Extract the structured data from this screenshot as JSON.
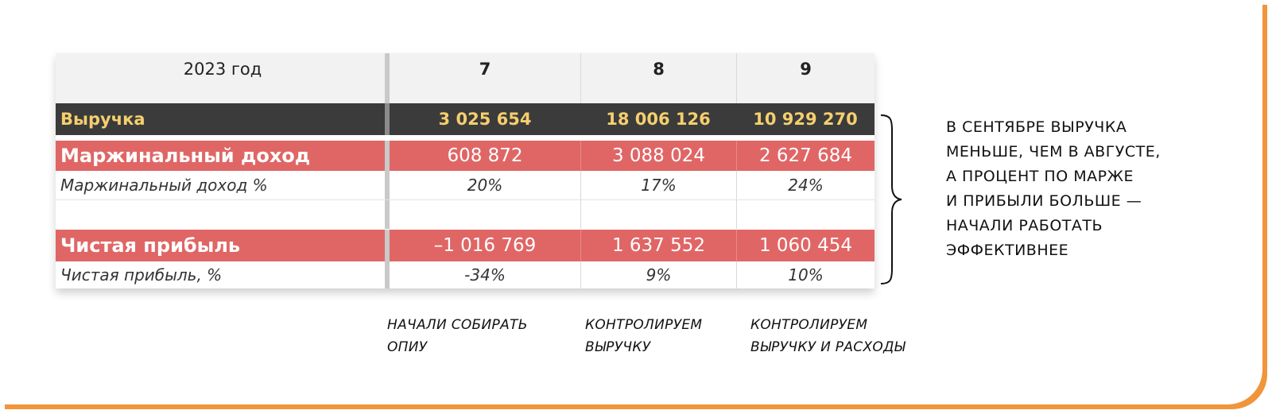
{
  "table": {
    "header": {
      "year_label": "2023 год",
      "months": [
        "7",
        "8",
        "9"
      ]
    },
    "rows": [
      {
        "label": "Выручка",
        "values": [
          "3 025 654",
          "18 006 126",
          "10 929 270"
        ]
      },
      {
        "label": "Маржинальный доход",
        "values": [
          "608 872",
          "3 088 024",
          "2 627 684"
        ]
      },
      {
        "label": "Маржинальный доход %",
        "values": [
          "20%",
          "17%",
          "24%"
        ]
      },
      {
        "label": "",
        "values": [
          "",
          "",
          ""
        ]
      },
      {
        "label": "Чистая прибыль",
        "values": [
          "–1 016 769",
          "1 637 552",
          "1 060 454"
        ]
      },
      {
        "label": "Чистая прибыль, %",
        "values": [
          "-34%",
          "9%",
          "10%"
        ]
      }
    ],
    "colors": {
      "revenue_bg": "#3b3b3b",
      "revenue_text": "#f5cf6e",
      "highlight_bg": "#e06666",
      "accent_border": "#f0953a"
    }
  },
  "side_note": {
    "lines": [
      "В СЕНТЯБРЕ ВЫРУЧКА",
      "МЕНЬШЕ, ЧЕМ В АВГУСТЕ,",
      "А ПРОЦЕНТ ПО МАРЖЕ",
      "И ПРИБЫЛИ БОЛЬШЕ —",
      "НАЧАЛИ РАБОТАТЬ",
      "ЭФФЕКТИВНЕЕ"
    ]
  },
  "captions": [
    {
      "lines": [
        "НАЧАЛИ СОБИРАТЬ",
        "ОПИУ"
      ]
    },
    {
      "lines": [
        "КОНТРОЛИРУЕМ",
        "ВЫРУЧКУ"
      ]
    },
    {
      "lines": [
        "КОНТРОЛИРУЕМ",
        "ВЫРУЧКУ И РАСХОДЫ"
      ]
    }
  ],
  "icons": {
    "brace": "right-curly-brace-icon"
  }
}
